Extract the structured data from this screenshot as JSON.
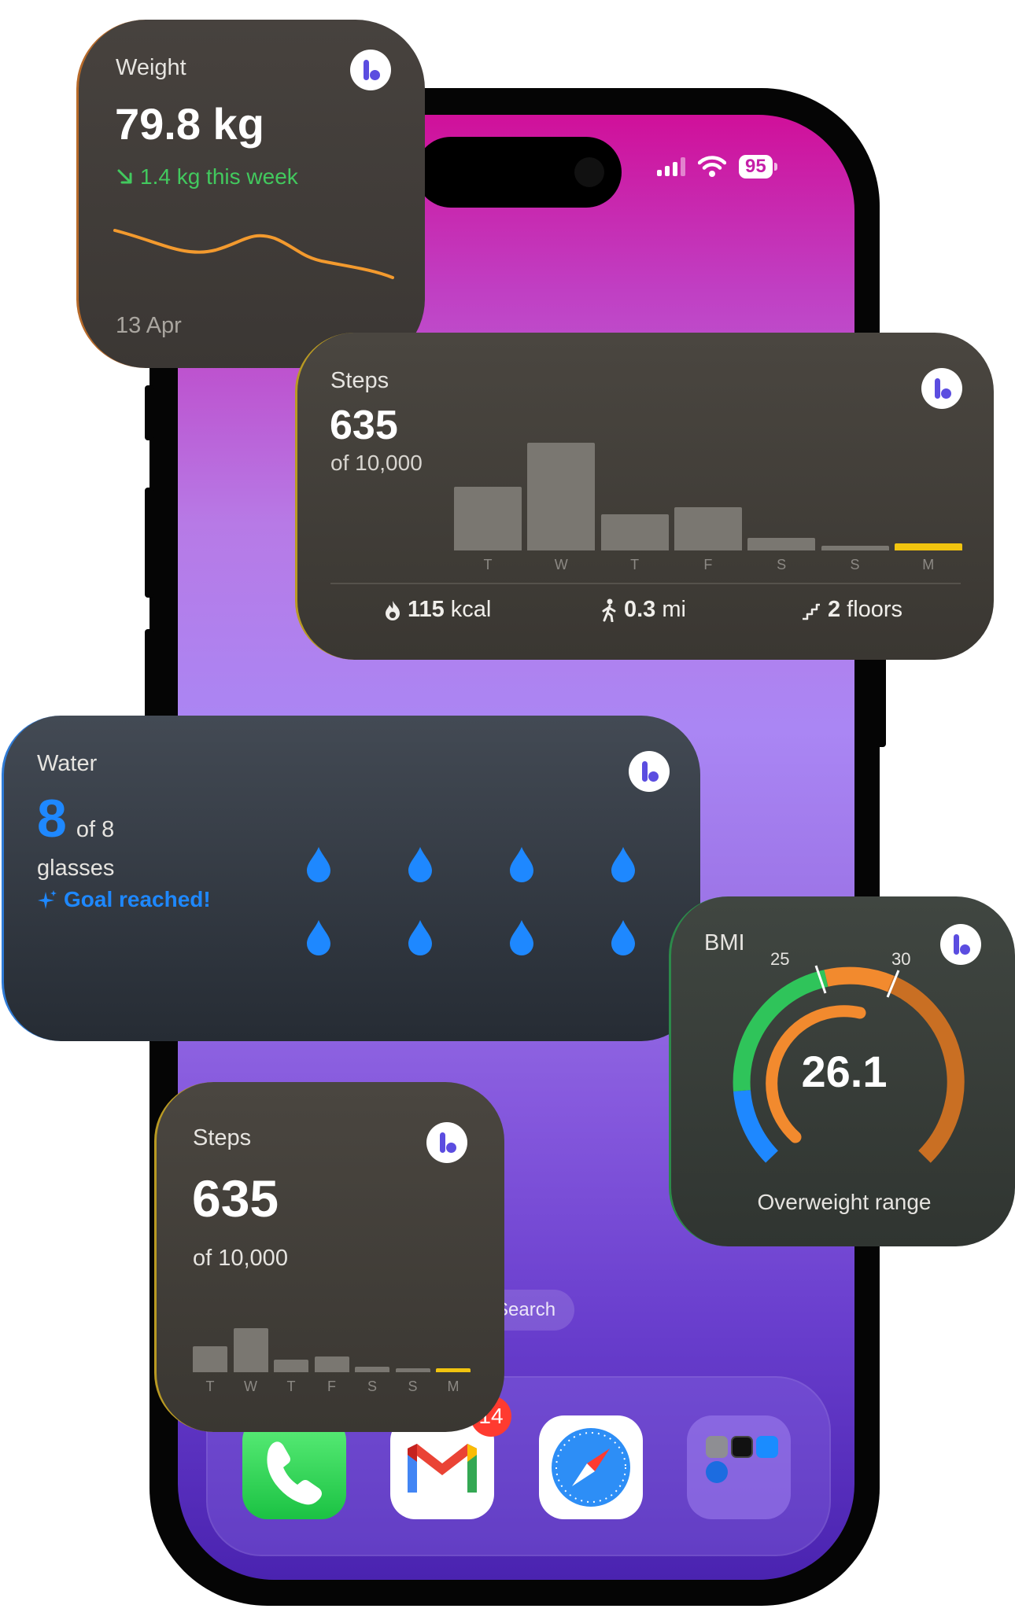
{
  "status_bar": {
    "battery": "95"
  },
  "home": {
    "search_label": "Search",
    "mail_badge": "14"
  },
  "weight_widget": {
    "label": "Weight",
    "value": "79.8 kg",
    "change": "1.4 kg this week",
    "date": "13 Apr",
    "accent": "#f39a2e",
    "trend_series": [
      6,
      3,
      5,
      2,
      0
    ]
  },
  "steps_widget_large": {
    "label": "Steps",
    "value": "635",
    "goal": "of 10,000",
    "days": [
      "T",
      "W",
      "T",
      "F",
      "S",
      "S",
      "M"
    ],
    "day_values": [
      62,
      105,
      35,
      42,
      12,
      4,
      7
    ],
    "today_index": 6,
    "stats": {
      "energy_value": "115",
      "energy_unit": "kcal",
      "distance_value": "0.3",
      "distance_unit": "mi",
      "floors_value": "2",
      "floors_unit": "floors"
    }
  },
  "water_widget": {
    "label": "Water",
    "value": "8",
    "goal": "of 8",
    "unit": "glasses",
    "status": "Goal reached!",
    "glasses_filled": 8,
    "glasses_total": 8,
    "accent": "#1e88ff"
  },
  "bmi_widget": {
    "label": "BMI",
    "value": "26.1",
    "range_label": "Overweight range",
    "tick_low": "25",
    "tick_high": "30",
    "colors": {
      "underweight": "#1e88ff",
      "normal": "#2fc45a",
      "overweight": "#f28a2e",
      "obese": "#c96f23"
    }
  },
  "steps_widget_small": {
    "label": "Steps",
    "value": "635",
    "goal": "of 10,000",
    "days": [
      "T",
      "W",
      "T",
      "F",
      "S",
      "S",
      "M"
    ],
    "day_values": [
      25,
      42,
      12,
      15,
      5,
      3,
      4
    ],
    "today_index": 6
  }
}
